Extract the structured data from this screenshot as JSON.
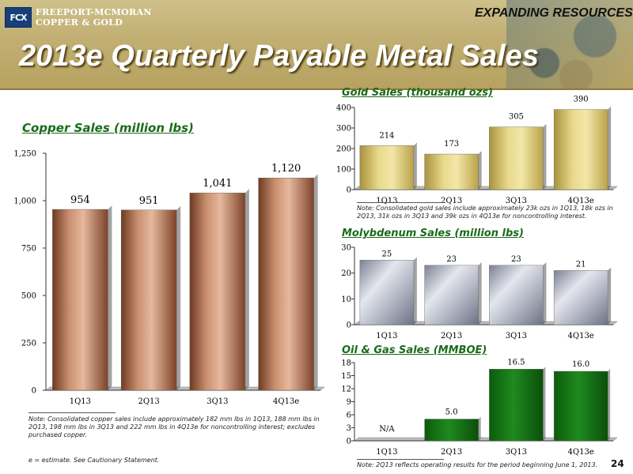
{
  "header": {
    "logo_mark": "FCX",
    "logo_line1": "FREEPORT-MCMORAN",
    "logo_line2": "COPPER & GOLD",
    "tagline": "EXPANDING RESOURCES",
    "title": "2013e Quarterly Payable Metal Sales"
  },
  "colors": {
    "title_green": "#1a6b1a",
    "copper": "#9a5a3a",
    "gold": "#c9b55c",
    "moly": "#9ea3b3",
    "oil": "#1f7a1f"
  },
  "chart_data": [
    {
      "id": "copper",
      "type": "bar",
      "title": "Copper Sales (million lbs)",
      "categories": [
        "1Q13",
        "2Q13",
        "3Q13",
        "4Q13e"
      ],
      "values": [
        954,
        951,
        1041,
        1120
      ],
      "data_labels": [
        "954",
        "951",
        "1,041",
        "1,120"
      ],
      "ylim": [
        0,
        1250
      ],
      "yticks": [
        0,
        250,
        500,
        750,
        1000,
        1250
      ],
      "ytick_labels": [
        "0",
        "250",
        "500",
        "750",
        "1,000",
        "1,250"
      ],
      "grid": false,
      "note": "Note:  Consolidated copper sales include approximately 182 mm lbs in 1Q13, 188 mm lbs in 2Q13, 198 mm lbs in 3Q13 and 222 mm lbs in 4Q13e for noncontrolling interest; excludes purchased copper."
    },
    {
      "id": "gold",
      "type": "bar",
      "title": "Gold Sales (thousand ozs)",
      "categories": [
        "1Q13",
        "2Q13",
        "3Q13",
        "4Q13e"
      ],
      "values": [
        214,
        173,
        305,
        390
      ],
      "data_labels": [
        "214",
        "173",
        "305",
        "390"
      ],
      "ylim": [
        0,
        400
      ],
      "yticks": [
        0,
        100,
        200,
        300,
        400
      ],
      "ytick_labels": [
        "0",
        "100",
        "200",
        "300",
        "400"
      ],
      "grid": false,
      "note": "Note: Consolidated gold sales include approximately 23k ozs in 1Q13, 18k ozs in 2Q13, 31k ozs in 3Q13 and 39k ozs in 4Q13e for noncontrolling interest."
    },
    {
      "id": "moly",
      "type": "bar",
      "title": "Molybdenum Sales (million lbs)",
      "categories": [
        "1Q13",
        "2Q13",
        "3Q13",
        "4Q13e"
      ],
      "values": [
        25,
        23,
        23,
        21
      ],
      "data_labels": [
        "25",
        "23",
        "23",
        "21"
      ],
      "ylim": [
        0,
        30
      ],
      "yticks": [
        0,
        10,
        20,
        30
      ],
      "ytick_labels": [
        "0",
        "10",
        "20",
        "30"
      ],
      "grid": false
    },
    {
      "id": "oil",
      "type": "bar",
      "title": "Oil & Gas Sales (MMBOE)",
      "categories": [
        "1Q13",
        "2Q13",
        "3Q13",
        "4Q13e"
      ],
      "values": [
        null,
        5.0,
        16.5,
        16.0
      ],
      "data_labels": [
        "N/A",
        "5.0",
        "16.5",
        "16.0"
      ],
      "ylim": [
        0,
        18
      ],
      "yticks": [
        0,
        3,
        6,
        9,
        12,
        15,
        18
      ],
      "ytick_labels": [
        "0",
        "3",
        "6",
        "9",
        "12",
        "15",
        "18"
      ],
      "grid": false,
      "note": "Note:  2Q13 reflects operating results for the period beginning June 1, 2013."
    }
  ],
  "footer": {
    "estimate_note": "e = estimate. See Cautionary Statement.",
    "page_number": "24"
  }
}
